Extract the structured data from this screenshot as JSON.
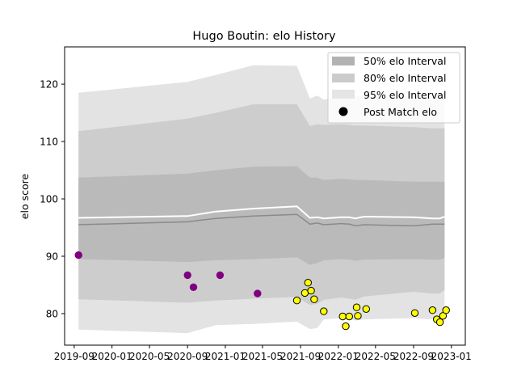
{
  "chart_data": {
    "type": "line",
    "title": "Hugo Boutin: elo History",
    "xlabel": "",
    "ylabel": "elo score",
    "x_range": [
      "2019-08-01",
      "2023-02-15"
    ],
    "ylim": [
      74.5,
      126.5
    ],
    "x_ticks": [
      {
        "date": "2019-09-01",
        "label": "2019-09"
      },
      {
        "date": "2020-01-01",
        "label": "2020-01"
      },
      {
        "date": "2020-05-01",
        "label": "2020-05"
      },
      {
        "date": "2020-09-01",
        "label": "2020-09"
      },
      {
        "date": "2021-01-01",
        "label": "2021-01"
      },
      {
        "date": "2021-05-01",
        "label": "2021-05"
      },
      {
        "date": "2021-09-01",
        "label": "2021-09"
      },
      {
        "date": "2022-01-01",
        "label": "2022-01"
      },
      {
        "date": "2022-05-01",
        "label": "2022-05"
      },
      {
        "date": "2022-09-01",
        "label": "2022-09"
      },
      {
        "date": "2023-01-01",
        "label": "2023-01"
      }
    ],
    "y_ticks": [
      80,
      90,
      100,
      110,
      120
    ],
    "legend": {
      "position": "top-right",
      "entries": [
        "50% elo Interval",
        "80% elo Interval",
        "95% elo Interval",
        "Post Match elo"
      ]
    },
    "grid": false,
    "band_dates": [
      "2019-09-15",
      "2020-09-01",
      "2020-12-01",
      "2021-04-01",
      "2021-08-20",
      "2021-10-01",
      "2021-10-25",
      "2021-11-15",
      "2022-01-10",
      "2022-02-05",
      "2022-02-25",
      "2022-03-25",
      "2022-09-01",
      "2022-11-01",
      "2022-11-25",
      "2022-12-10"
    ],
    "band_95": {
      "lower": [
        77.2,
        76.6,
        78.0,
        78.2,
        78.6,
        77.3,
        77.5,
        79.0,
        79.2,
        79.1,
        78.8,
        79.0,
        79.2,
        79.0,
        79.0,
        79.7
      ],
      "upper": [
        118.5,
        120.4,
        121.6,
        123.3,
        123.2,
        117.5,
        118.0,
        117.3,
        118.0,
        117.8,
        117.9,
        117.9,
        117.8,
        117.7,
        117.7,
        117.7
      ]
    },
    "band_80": {
      "lower": [
        82.5,
        81.9,
        82.3,
        82.6,
        82.9,
        81.5,
        81.7,
        82.4,
        82.8,
        82.6,
        82.4,
        83.0,
        83.8,
        83.5,
        83.5,
        84.1
      ],
      "upper": [
        111.8,
        114.0,
        115.0,
        116.5,
        116.5,
        112.7,
        113.0,
        112.9,
        113.0,
        112.9,
        112.8,
        112.8,
        112.5,
        112.3,
        112.3,
        112.3
      ]
    },
    "band_50": {
      "lower": [
        89.5,
        89.0,
        89.3,
        89.5,
        89.8,
        88.5,
        88.8,
        89.3,
        89.5,
        89.4,
        89.2,
        89.4,
        89.5,
        89.4,
        89.4,
        89.7
      ],
      "upper": [
        103.7,
        104.4,
        105.0,
        105.6,
        105.7,
        103.7,
        103.7,
        103.3,
        103.5,
        103.4,
        103.3,
        103.3,
        103.0,
        103.0,
        103.0,
        103.0
      ]
    },
    "series": [
      {
        "values": [
          96.7,
          97.0,
          97.8,
          98.3,
          98.7,
          96.7,
          96.8,
          96.6,
          96.8,
          96.8,
          96.6,
          96.9,
          96.8,
          96.6,
          96.6,
          96.9
        ]
      },
      {
        "values": [
          95.5,
          96.0,
          96.6,
          97.0,
          97.3,
          95.6,
          95.8,
          95.5,
          95.7,
          95.6,
          95.3,
          95.5,
          95.3,
          95.6,
          95.6,
          95.6
        ]
      }
    ],
    "post_match_points": [
      {
        "date": "2019-09-15",
        "elo": 90.2,
        "color": "#800080"
      },
      {
        "date": "2020-09-01",
        "elo": 86.7,
        "color": "#800080"
      },
      {
        "date": "2020-09-20",
        "elo": 84.6,
        "color": "#800080"
      },
      {
        "date": "2020-12-15",
        "elo": 86.7,
        "color": "#800080"
      },
      {
        "date": "2021-04-15",
        "elo": 83.5,
        "color": "#800080"
      },
      {
        "date": "2021-08-20",
        "elo": 82.3,
        "color": "#ffff00"
      },
      {
        "date": "2021-09-15",
        "elo": 83.6,
        "color": "#ffff00"
      },
      {
        "date": "2021-09-25",
        "elo": 85.4,
        "color": "#ffff00"
      },
      {
        "date": "2021-10-05",
        "elo": 84.0,
        "color": "#ffff00"
      },
      {
        "date": "2021-10-15",
        "elo": 82.5,
        "color": "#ffff00"
      },
      {
        "date": "2021-11-15",
        "elo": 80.4,
        "color": "#ffff00"
      },
      {
        "date": "2022-01-15",
        "elo": 79.5,
        "color": "#ffff00"
      },
      {
        "date": "2022-01-25",
        "elo": 77.8,
        "color": "#ffff00"
      },
      {
        "date": "2022-02-05",
        "elo": 79.5,
        "color": "#ffff00"
      },
      {
        "date": "2022-03-01",
        "elo": 81.1,
        "color": "#ffff00"
      },
      {
        "date": "2022-03-05",
        "elo": 79.6,
        "color": "#ffff00"
      },
      {
        "date": "2022-04-01",
        "elo": 80.8,
        "color": "#ffff00"
      },
      {
        "date": "2022-09-05",
        "elo": 80.1,
        "color": "#ffff00"
      },
      {
        "date": "2022-11-01",
        "elo": 80.6,
        "color": "#ffff00"
      },
      {
        "date": "2022-11-15",
        "elo": 79.0,
        "color": "#ffff00"
      },
      {
        "date": "2022-11-25",
        "elo": 78.5,
        "color": "#ffff00"
      },
      {
        "date": "2022-12-05",
        "elo": 79.6,
        "color": "#ffff00"
      },
      {
        "date": "2022-12-15",
        "elo": 80.6,
        "color": "#ffff00"
      }
    ],
    "colors": {
      "band_95": "#e3e3e3",
      "band_80": "#cdcdcd",
      "band_50": "#bababa",
      "mean_line": "#ffffff",
      "median_line": "#8a8a8a",
      "point_edge": "#000000",
      "legend_swatch_50": "#b2b2b2",
      "legend_swatch_80": "#cbcbcb",
      "legend_swatch_95": "#e5e5e5"
    }
  }
}
